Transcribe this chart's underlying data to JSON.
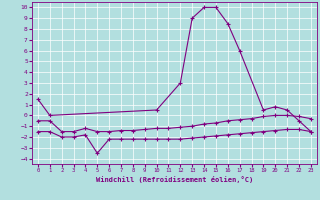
{
  "line1_x": [
    0,
    1,
    10,
    12,
    13,
    14,
    15,
    16,
    17,
    19,
    20,
    21,
    22,
    23
  ],
  "line1_y": [
    1.5,
    0.0,
    0.5,
    3.0,
    9.0,
    10.0,
    10.0,
    8.5,
    6.0,
    0.5,
    0.8,
    0.5,
    -0.5,
    -1.5
  ],
  "line2_x": [
    0,
    1,
    2,
    3,
    4,
    5,
    6,
    7,
    8,
    9,
    10,
    11,
    12,
    13,
    14,
    15,
    16,
    17,
    18,
    19,
    20,
    21,
    22,
    23
  ],
  "line2_y": [
    -0.5,
    -0.5,
    -1.5,
    -1.5,
    -1.2,
    -1.5,
    -1.5,
    -1.4,
    -1.4,
    -1.3,
    -1.2,
    -1.2,
    -1.1,
    -1.0,
    -0.8,
    -0.7,
    -0.5,
    -0.4,
    -0.3,
    -0.1,
    0.0,
    0.0,
    -0.1,
    -0.3
  ],
  "line3_x": [
    0,
    1,
    2,
    3,
    4,
    5,
    6,
    7,
    8,
    9,
    10,
    11,
    12,
    13,
    14,
    15,
    16,
    17,
    18,
    19,
    20,
    21,
    22,
    23
  ],
  "line3_y": [
    -1.5,
    -1.5,
    -2.0,
    -2.0,
    -1.8,
    -3.5,
    -2.2,
    -2.2,
    -2.2,
    -2.2,
    -2.2,
    -2.2,
    -2.2,
    -2.1,
    -2.0,
    -1.9,
    -1.8,
    -1.7,
    -1.6,
    -1.5,
    -1.4,
    -1.3,
    -1.3,
    -1.5
  ],
  "color": "#800080",
  "bg_color": "#b2dfdf",
  "xlabel": "Windchill (Refroidissement éolien,°C)",
  "xlim": [
    -0.5,
    23.5
  ],
  "ylim": [
    -4.5,
    10.5
  ],
  "yticks": [
    10,
    9,
    8,
    7,
    6,
    5,
    4,
    3,
    2,
    1,
    0,
    -1,
    -2,
    -3,
    -4
  ],
  "xticks": [
    0,
    1,
    2,
    3,
    4,
    5,
    6,
    7,
    8,
    9,
    10,
    11,
    12,
    13,
    14,
    15,
    16,
    17,
    18,
    19,
    20,
    21,
    22,
    23
  ]
}
